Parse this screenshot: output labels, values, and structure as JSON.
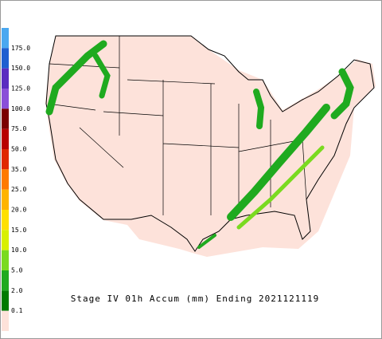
{
  "title": "Stage IV 01h Accum (mm) Ending 2021121119",
  "legend": {
    "labels": [
      "175.0",
      "150.0",
      "125.0",
      "100.0",
      "75.0",
      "50.0",
      "35.0",
      "25.0",
      "20.0",
      "15.0",
      "10.0",
      "5.0",
      "2.0",
      "0.1"
    ],
    "colors": [
      "#4aa8f0",
      "#1f5fd0",
      "#5a2cc0",
      "#8a4fd8",
      "#7a0000",
      "#b80000",
      "#e02800",
      "#ff7a00",
      "#ffb400",
      "#ffe000",
      "#d8f000",
      "#7ada20",
      "#1faa1f",
      "#007a00",
      "#fde2da"
    ]
  }
}
